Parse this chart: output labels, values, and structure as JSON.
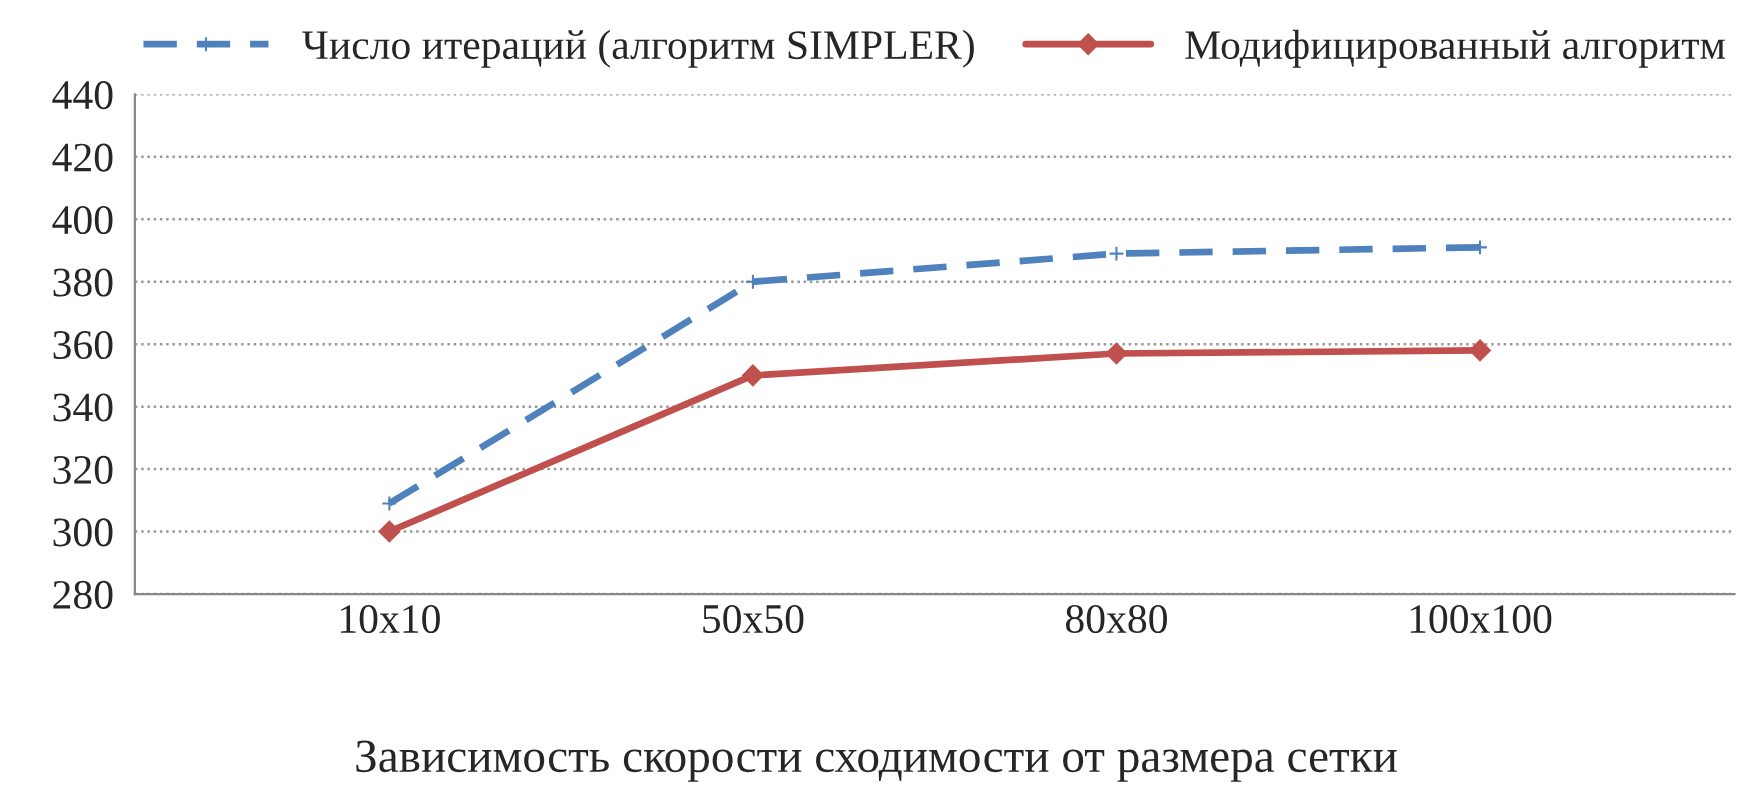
{
  "chart_data": {
    "type": "line",
    "categories": [
      "10x10",
      "50x50",
      "80x80",
      "100x100"
    ],
    "series": [
      {
        "name": "Число итераций (алгоритм SIMPLER)",
        "color": "#4f81bd",
        "values": [
          309,
          380,
          389,
          391
        ],
        "line_style": "dashed",
        "marker": "cross"
      },
      {
        "name": "Модифицированный алгоритм",
        "color": "#c0504d",
        "values": [
          300,
          350,
          357,
          358
        ],
        "line_style": "solid",
        "marker": "diamond"
      }
    ],
    "ylim": [
      280,
      440
    ],
    "yticks": [
      280,
      300,
      320,
      340,
      360,
      380,
      400,
      420,
      440
    ],
    "grid": "y",
    "legend": "top",
    "annotations": [
      "Зависимость скорости сходимости от размера сетки"
    ]
  }
}
